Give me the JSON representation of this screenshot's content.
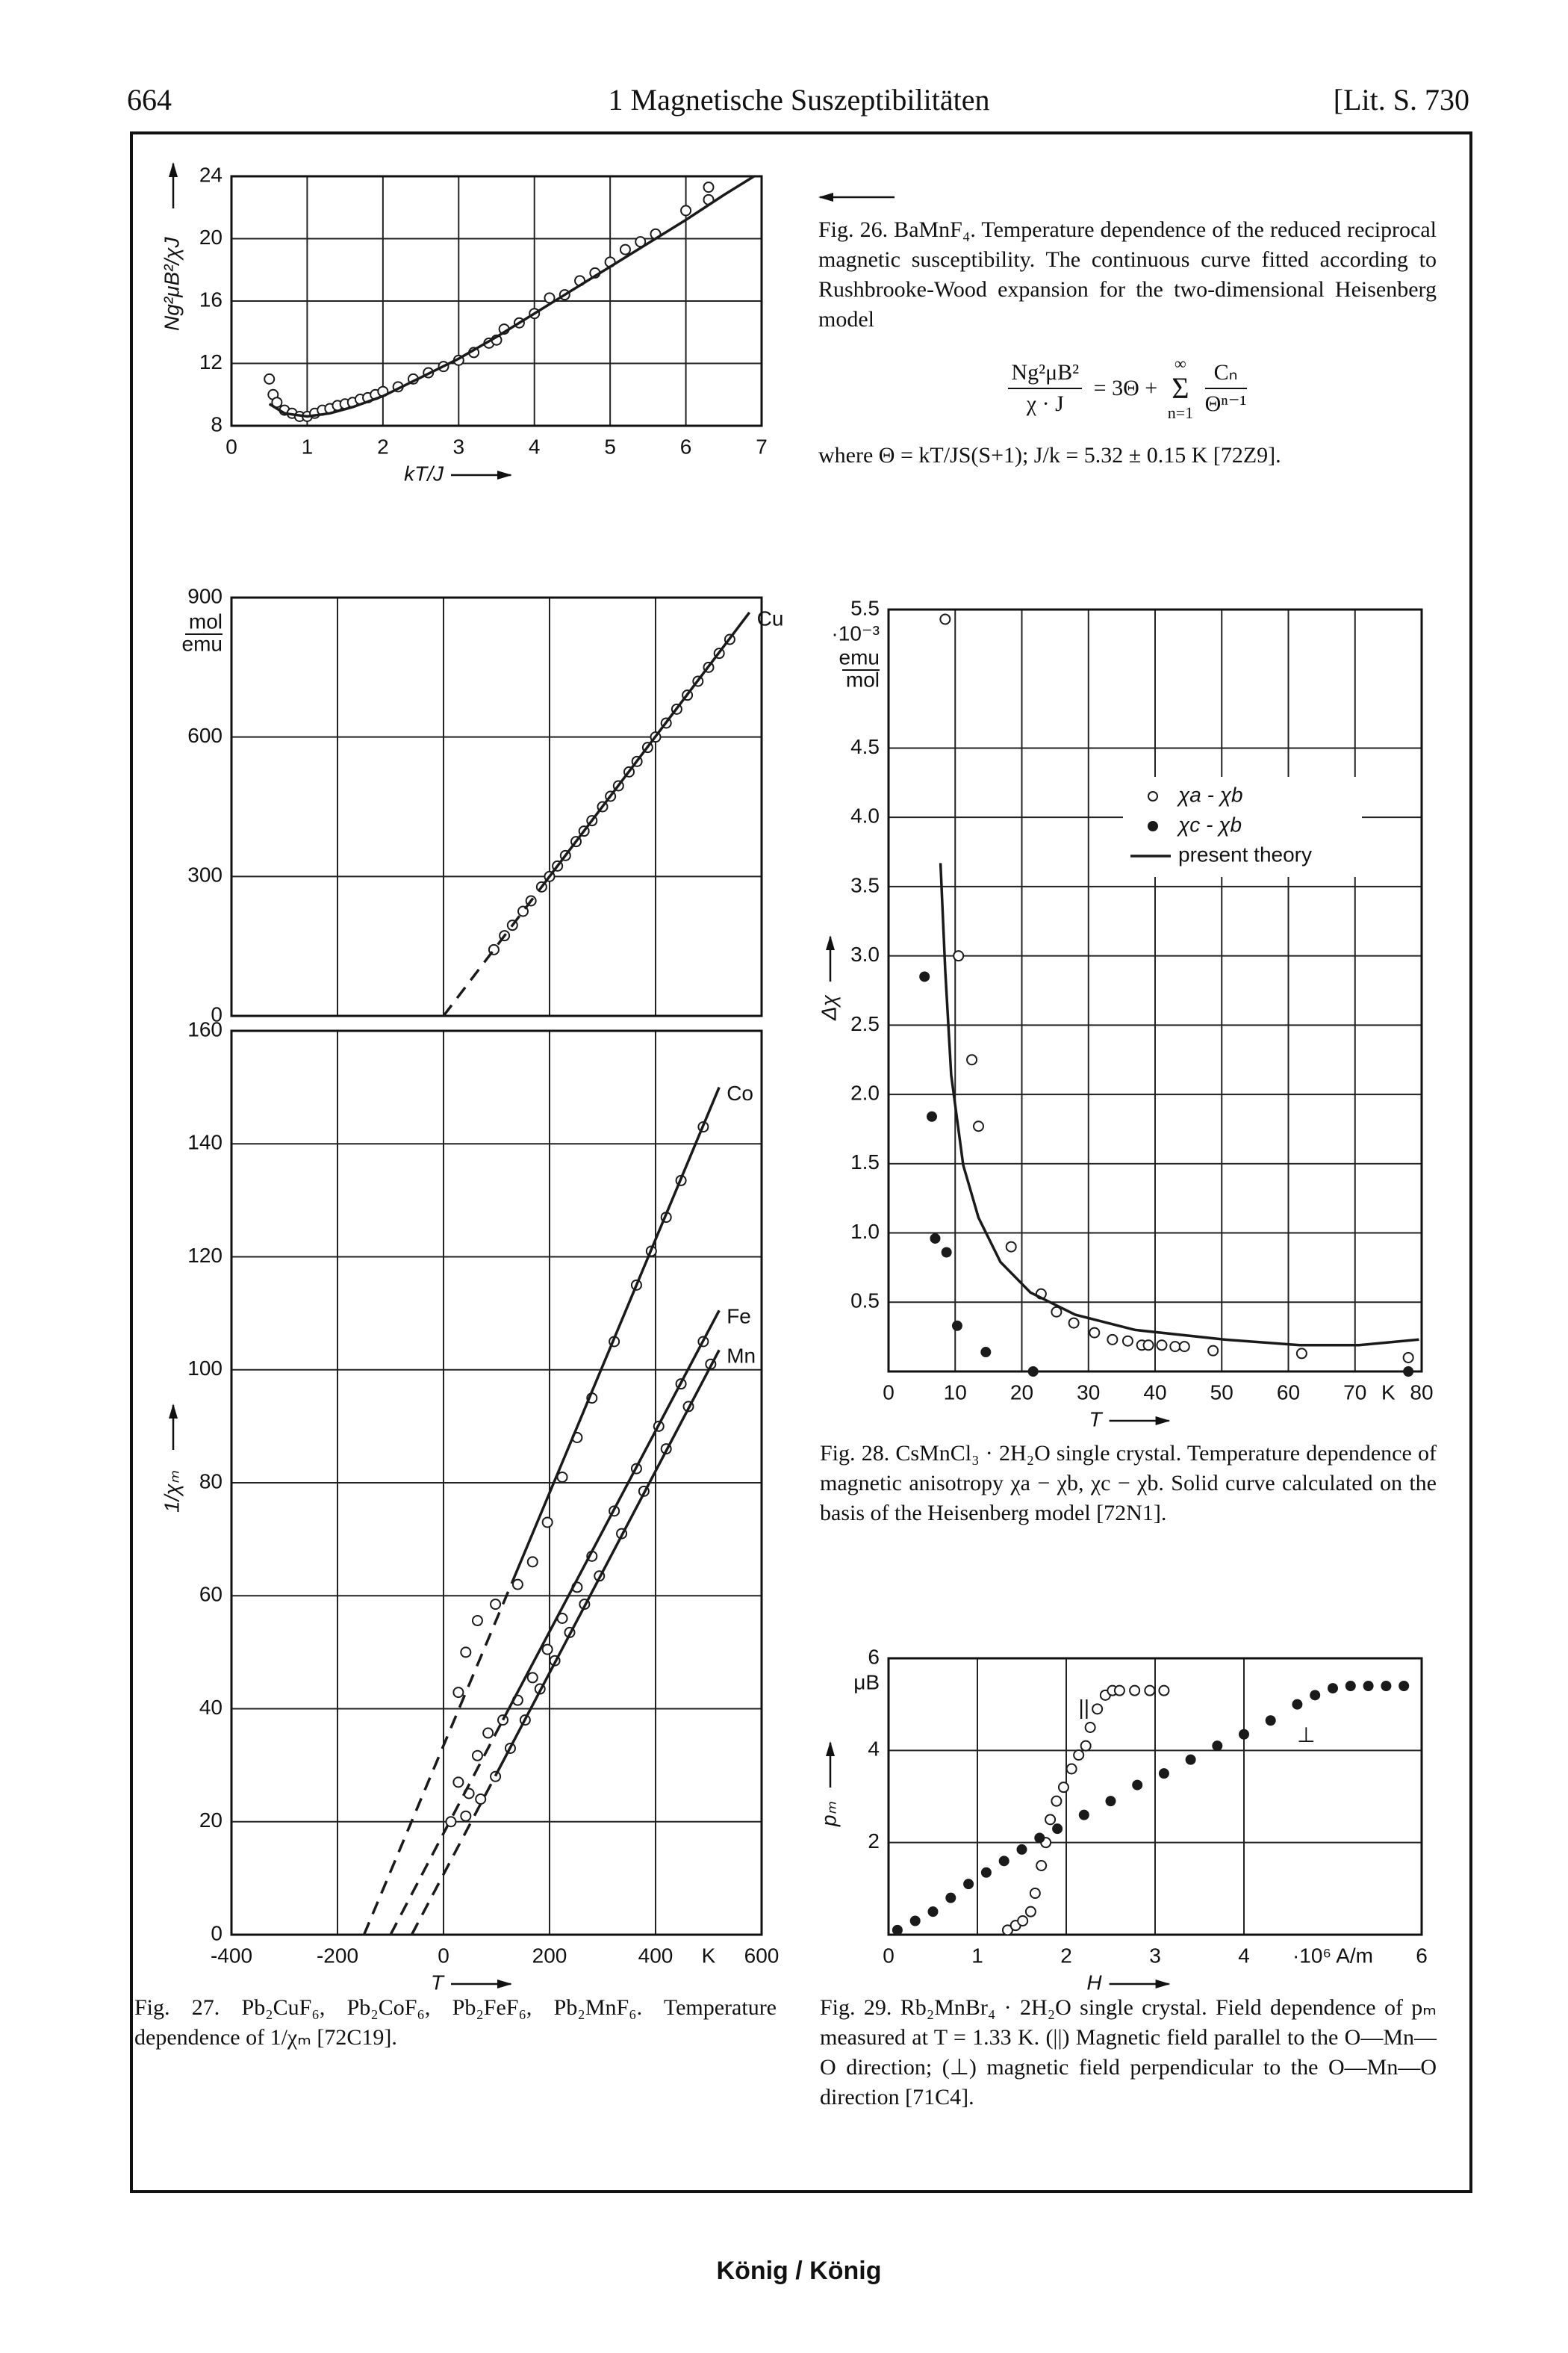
{
  "header": {
    "page": "664",
    "title": "1 Magnetische Suszeptibilitäten",
    "ref": "[Lit. S. 730"
  },
  "footer": "König / König",
  "chart_data": [
    {
      "type": "scatter",
      "xlim": [
        0,
        7
      ],
      "ylim": [
        8,
        24
      ],
      "xticks": [
        0,
        1,
        2,
        3,
        4,
        5,
        6,
        7
      ],
      "yticks": [
        8,
        12,
        16,
        20,
        24
      ],
      "grid": true,
      "xlabel": "kT/J",
      "ylabel": "Ng²μB²/χJ",
      "series": [
        {
          "marker": "open-circle",
          "color": "#1a1a1a",
          "x": [
            0.5,
            0.55,
            0.6,
            0.7,
            0.8,
            0.9,
            1.0,
            1.1,
            1.2,
            1.3,
            1.4,
            1.5,
            1.6,
            1.7,
            1.8,
            1.9,
            2.0,
            2.2,
            2.4,
            2.6,
            2.8,
            3.0,
            3.2,
            3.4,
            3.5,
            3.6,
            3.8,
            4.0,
            4.2,
            4.4,
            4.6,
            4.8,
            5.0,
            5.2,
            5.4,
            5.6,
            6.0,
            6.3,
            6.3
          ],
          "y": [
            11,
            10,
            9.5,
            9,
            8.8,
            8.6,
            8.6,
            8.8,
            9,
            9.1,
            9.3,
            9.4,
            9.5,
            9.7,
            9.8,
            10,
            10.2,
            10.5,
            11,
            11.4,
            11.8,
            12.2,
            12.7,
            13.3,
            13.5,
            14.2,
            14.6,
            15.2,
            16.2,
            16.4,
            17.3,
            17.8,
            18.5,
            19.3,
            19.8,
            20.3,
            21.8,
            22.5,
            23.3
          ]
        },
        {
          "marker": "line",
          "color": "#1a1a1a",
          "x": [
            0.5,
            0.7,
            1.0,
            1.3,
            1.6,
            2,
            2.5,
            3,
            3.5,
            4,
            4.5,
            5,
            5.5,
            6,
            6.5,
            6.9
          ],
          "y": [
            9.4,
            8.8,
            8.6,
            8.8,
            9.2,
            9.9,
            11.1,
            12.3,
            13.7,
            15.2,
            16.7,
            18.2,
            19.7,
            21.2,
            22.8,
            24
          ]
        }
      ],
      "caption": "Fig. 26. BaMnF₄. Temperature dependence of the reduced reciprocal magnetic susceptibility. The continuous curve fitted according to Rushbrooke-Wood expansion for the two-dimensional Heisenberg model",
      "formula": {
        "lhs_num": "Ng²μB²",
        "lhs_den": "χ · J",
        "rhs": "= 3Θ +",
        "sum_top": "∞",
        "sum": "Σ",
        "sum_bottom": "n=1",
        "frac_num": "Cₙ",
        "frac_den": "Θⁿ⁻¹"
      },
      "caption_after": "where Θ = kT/JS(S+1); J/k = 5.32 ± 0.15 K [72Z9]."
    },
    {
      "type": "scatter",
      "xlim": [
        -400,
        600
      ],
      "ylim": [
        0,
        900
      ],
      "xticks": [
        -400,
        -200,
        0,
        200,
        400,
        600
      ],
      "xtick_labels": false,
      "yticks": [
        0,
        300,
        600,
        900
      ],
      "grid": true,
      "y_unit_num": "mol",
      "y_unit_den": "emu",
      "series": [
        {
          "marker": "open-circle",
          "color": "#1a1a1a",
          "x": [
            95,
            115,
            130,
            150,
            165,
            185,
            200,
            215,
            230,
            250,
            265,
            280,
            300,
            315,
            330,
            350,
            365,
            385,
            400,
            420,
            440,
            460,
            480,
            500,
            520,
            540
          ],
          "y": [
            142.5,
            172.5,
            195,
            225,
            247.5,
            277.5,
            300,
            322.5,
            345,
            375,
            397.5,
            420,
            450,
            472.5,
            495,
            525,
            547.5,
            577.5,
            600,
            630,
            660,
            690,
            720,
            750,
            780,
            810
          ]
        },
        {
          "marker": "line",
          "dash": true,
          "color": "#1a1a1a",
          "x": [
            0,
            190
          ],
          "y": [
            0,
            285
          ]
        },
        {
          "marker": "line",
          "name": "Cu",
          "color": "#1a1a1a",
          "x": [
            190,
            577
          ],
          "y": [
            285,
            868
          ]
        }
      ]
    },
    {
      "type": "scatter",
      "xlim": [
        -400,
        600
      ],
      "ylim": [
        0,
        160
      ],
      "xticks": [
        -400,
        -200,
        0,
        200,
        400,
        600
      ],
      "yticks": [
        0,
        20,
        40,
        60,
        80,
        100,
        120,
        140,
        160
      ],
      "grid": true,
      "xlabel": "T",
      "ylabel": "1/χₘ",
      "x_unit": "K",
      "series": [
        {
          "marker": "open-circle",
          "color": "#1a1a1a",
          "x": [
            28,
            42,
            64,
            98,
            140,
            168,
            196,
            224,
            252,
            280,
            322,
            364,
            392,
            420,
            448,
            490
          ],
          "y": [
            42.9,
            50,
            55.6,
            58.5,
            62,
            66,
            73,
            81,
            88,
            95,
            105,
            115,
            121,
            127,
            133.5,
            143
          ]
        },
        {
          "marker": "line",
          "dash": true,
          "color": "#1a1a1a",
          "x": [
            -150,
            130
          ],
          "y": [
            0,
            62.5
          ]
        },
        {
          "marker": "line",
          "name": "Co",
          "color": "#1a1a1a",
          "x": [
            130,
            520
          ],
          "y": [
            62.5,
            150
          ]
        },
        {
          "marker": "open-circle",
          "color": "#1a1a1a",
          "x": [
            28,
            48,
            64,
            84,
            112,
            140,
            168,
            196,
            224,
            252,
            280,
            322,
            364,
            406,
            448,
            490
          ],
          "y": [
            27,
            25,
            31.7,
            35.7,
            38,
            41.5,
            45.5,
            50.5,
            56,
            61.5,
            67,
            75,
            82.5,
            90,
            97.5,
            105
          ]
        },
        {
          "marker": "line",
          "dash": true,
          "color": "#1a1a1a",
          "x": [
            -100,
            112
          ],
          "y": [
            0,
            38
          ]
        },
        {
          "marker": "line",
          "name": "Fe",
          "color": "#1a1a1a",
          "x": [
            112,
            520
          ],
          "y": [
            38,
            110.5
          ]
        },
        {
          "marker": "open-circle",
          "color": "#1a1a1a",
          "x": [
            14,
            42,
            70,
            98,
            126,
            154,
            182,
            210,
            238,
            266,
            294,
            336,
            378,
            420,
            462,
            504
          ],
          "y": [
            20,
            21,
            24,
            28,
            33,
            38,
            43.5,
            48.5,
            53.5,
            58.5,
            63.5,
            71,
            78.5,
            86,
            93.5,
            101
          ]
        },
        {
          "marker": "line",
          "dash": true,
          "color": "#1a1a1a",
          "x": [
            -60,
            100
          ],
          "y": [
            0,
            28.5
          ]
        },
        {
          "marker": "line",
          "name": "Mn",
          "color": "#1a1a1a",
          "x": [
            100,
            520
          ],
          "y": [
            28.5,
            103.5
          ]
        }
      ],
      "caption": "Fig. 27. Pb₂CuF₆, Pb₂CoF₆, Pb₂FeF₆, Pb₂MnF₆. Temperature dependence of 1/χₘ [72C19]."
    },
    {
      "type": "scatter",
      "xlim": [
        0,
        80
      ],
      "ylim": [
        0,
        5.5
      ],
      "xticks": [
        0,
        10,
        20,
        30,
        40,
        50,
        60,
        70,
        80
      ],
      "yticks": [
        0.5,
        {
          "value": 1,
          "label": "1.0"
        },
        1.5,
        {
          "value": 2,
          "label": "2.0"
        },
        2.5,
        {
          "value": 3,
          "label": "3.0"
        },
        3.5,
        {
          "value": 4,
          "label": "4.0"
        },
        4.5,
        5.5
      ],
      "grid": true,
      "legend": true,
      "xlabel": "T",
      "ylabel": "Δχ",
      "x_unit": "K",
      "y_unit": "·10⁻³",
      "y_unit_num": "emu",
      "y_unit_den": "mol",
      "series": [
        {
          "name": "χa - χb",
          "marker": "open-circle",
          "color": "#1a1a1a",
          "x": [
            8.5,
            10.5,
            12.5,
            13.5,
            18.4,
            22.9,
            25.2,
            27.8,
            30.9,
            33.6,
            35.9,
            38,
            39,
            41,
            43,
            44.4,
            48.7,
            62,
            78
          ],
          "y": [
            5.43,
            3.0,
            2.25,
            1.77,
            0.9,
            0.56,
            0.43,
            0.35,
            0.28,
            0.23,
            0.22,
            0.19,
            0.19,
            0.19,
            0.18,
            0.18,
            0.15,
            0.13,
            0.1
          ]
        },
        {
          "name": "χc - χb",
          "marker": "filled-circle",
          "color": "#1a1a1a",
          "x": [
            5.4,
            6.5,
            7,
            8.7,
            10.3,
            14.6,
            21.7,
            78
          ],
          "y": [
            2.85,
            1.84,
            0.96,
            0.86,
            0.33,
            0.14,
            0,
            0
          ]
        },
        {
          "name": "present theory",
          "marker": "line",
          "color": "#1a1a1a",
          "x": [
            7.8,
            8.5,
            9.4,
            11.2,
            13.5,
            16.8,
            21.3,
            28,
            37,
            50.4,
            61.7,
            70.6,
            79.6
          ],
          "y": [
            3.67,
            2.9,
            2.14,
            1.49,
            1.11,
            0.79,
            0.57,
            0.41,
            0.3,
            0.23,
            0.19,
            0.19,
            0.23
          ]
        }
      ],
      "caption": "Fig. 28. CsMnCl₃ · 2H₂O single crystal. Temperature dependence of magnetic anisotropy χa − χb, χc − χb. Solid curve calculated on the basis of the Heisenberg model [72N1]."
    },
    {
      "type": "scatter",
      "xlim": [
        0,
        6
      ],
      "ylim": [
        0,
        6
      ],
      "xticks": [
        0,
        1,
        2,
        3,
        4,
        6
      ],
      "yticks": [
        2,
        4,
        6
      ],
      "grid": true,
      "xlabel": "H",
      "ylabel": "pₘ",
      "x_unit": "·10⁶ A/m",
      "y_unit": "μB",
      "annotations": [
        {
          "text": "||",
          "x": 2.2,
          "y": 4.9
        },
        {
          "text": "⊥",
          "x": 4.7,
          "y": 4.3
        }
      ],
      "series": [
        {
          "marker": "open-circle",
          "color": "#1a1a1a",
          "x": [
            1.34,
            1.43,
            1.51,
            1.6,
            1.65,
            1.72,
            1.77,
            1.82,
            1.89,
            1.97,
            2.06,
            2.14,
            2.22,
            2.27,
            2.35,
            2.44,
            2.52,
            2.6,
            2.77,
            2.94,
            3.1
          ],
          "y": [
            0.1,
            0.2,
            0.3,
            0.5,
            0.9,
            1.5,
            2.0,
            2.5,
            2.9,
            3.2,
            3.6,
            3.9,
            4.1,
            4.5,
            4.9,
            5.2,
            5.3,
            5.3,
            5.3,
            5.3,
            5.3
          ]
        },
        {
          "marker": "filled-circle",
          "color": "#1a1a1a",
          "x": [
            0.1,
            0.3,
            0.5,
            0.7,
            0.9,
            1.1,
            1.3,
            1.5,
            1.7,
            1.9,
            2.2,
            2.5,
            2.8,
            3.1,
            3.4,
            3.7,
            4.0,
            4.3,
            4.6,
            4.8,
            5.0,
            5.2,
            5.4,
            5.6,
            5.8
          ],
          "y": [
            0.1,
            0.3,
            0.5,
            0.8,
            1.1,
            1.35,
            1.6,
            1.85,
            2.1,
            2.3,
            2.6,
            2.9,
            3.25,
            3.5,
            3.8,
            4.1,
            4.35,
            4.65,
            5.0,
            5.2,
            5.35,
            5.4,
            5.4,
            5.4,
            5.4
          ]
        }
      ],
      "caption": "Fig. 29. Rb₂MnBr₄ · 2H₂O single crystal. Field dependence of pₘ measured at T = 1.33 K. (||) Magnetic field parallel to the O—Mn—O direction; (⊥) magnetic field perpendicular to the O—Mn—O direction [71C4]."
    }
  ]
}
